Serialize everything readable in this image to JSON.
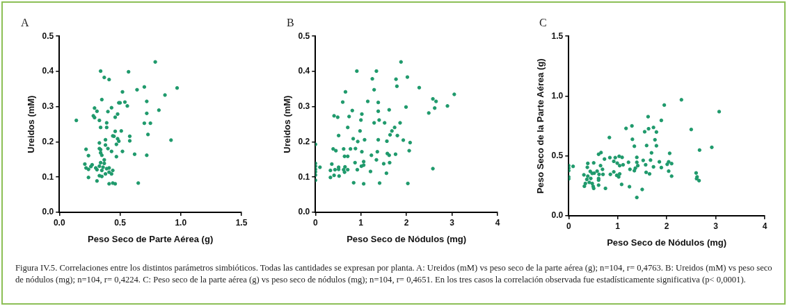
{
  "chart_data": [
    {
      "type": "scatter",
      "title": "A",
      "xlabel": "Peso Seco de Parte Aérea (g)",
      "ylabel": "Ureidos (mM)",
      "marker": "circle",
      "grid": false,
      "legend": false,
      "xlim": [
        0,
        1.5
      ],
      "xticks": [
        {
          "value": 0,
          "label": "0.0"
        },
        {
          "value": 0.5,
          "label": "0.5"
        },
        {
          "value": 1,
          "label": "1.0"
        },
        {
          "value": 1.5,
          "label": "1.5"
        }
      ],
      "ylim": [
        0,
        0.5
      ],
      "yticks": [
        {
          "value": 0,
          "label": "0.0"
        },
        {
          "value": 0.1,
          "label": "0.1"
        },
        {
          "value": 0.2,
          "label": "0.2"
        },
        {
          "value": 0.3,
          "label": "0.3"
        },
        {
          "value": 0.4,
          "label": "0.4"
        },
        {
          "value": 0.5,
          "label": "0.5"
        }
      ],
      "annotations": [
        "Figura IV.5. Correlaciones entre los distintos parámetros simbióticos. Todas las cantidades se expresan por planta. A: Ureidos (mM) vs peso seco de la parte aérea (g); n=104, r= 0,4763. B: Ureidos (mM) vs peso seco de nódulos (mg); n=104, r= 0,4224. C: Peso seco de la parte aérea (g) vs peso seco de nódulos (mg); n=104, r= 0,4651. En los tres casos la correlación observada fue estadísticamente significativa (p< 0,0001)."
      ],
      "series": [
        {
          "color": "#1f9a6c",
          "x": [
            0.14,
            0.34,
            0.37,
            0.41,
            0.57,
            0.79,
            0.7,
            0.64,
            0.52,
            0.97,
            0.87,
            0.72,
            0.54,
            0.56,
            0.49,
            0.5,
            0.35,
            0.29,
            0.31,
            0.43,
            0.4,
            0.48,
            0.28,
            0.29,
            0.33,
            0.46,
            0.39,
            0.34,
            0.39,
            0.72,
            0.82,
            0.7,
            0.75,
            0.51,
            0.46,
            0.58,
            0.58,
            0.73,
            0.44,
            0.45,
            0.48,
            0.49,
            0.38,
            0.33,
            0.38,
            0.4,
            0.47,
            0.43,
            0.52,
            0.92,
            0.22,
            0.33,
            0.34,
            0.34,
            0.35,
            0.24,
            0.62,
            0.72,
            0.47,
            0.37,
            0.34,
            0.37,
            0.21,
            0.27,
            0.26,
            0.22,
            0.24,
            0.3,
            0.33,
            0.36,
            0.39,
            0.41,
            0.31,
            0.35,
            0.44,
            0.41,
            0.38,
            0.33,
            0.35,
            0.43,
            0.24,
            0.31,
            0.41,
            0.44,
            0.46,
            0.65
          ],
          "values": [
            0.261,
            0.401,
            0.383,
            0.377,
            0.399,
            0.427,
            0.356,
            0.348,
            0.342,
            0.353,
            0.333,
            0.315,
            0.313,
            0.302,
            0.311,
            0.311,
            0.32,
            0.296,
            0.287,
            0.297,
            0.286,
            0.279,
            0.274,
            0.269,
            0.261,
            0.27,
            0.254,
            0.241,
            0.241,
            0.281,
            0.29,
            0.253,
            0.253,
            0.231,
            0.23,
            0.216,
            0.203,
            0.221,
            0.217,
            0.216,
            0.209,
            0.202,
            0.206,
            0.197,
            0.191,
            0.181,
            0.193,
            0.173,
            0.173,
            0.205,
            0.179,
            0.181,
            0.178,
            0.169,
            0.162,
            0.161,
            0.165,
            0.162,
            0.158,
            0.149,
            0.141,
            0.139,
            0.137,
            0.135,
            0.13,
            0.126,
            0.122,
            0.126,
            0.131,
            0.128,
            0.124,
            0.126,
            0.121,
            0.119,
            0.119,
            0.114,
            0.109,
            0.104,
            0.102,
            0.109,
            0.099,
            0.089,
            0.081,
            0.083,
            0.081,
            0.083
          ]
        }
      ]
    },
    {
      "type": "scatter",
      "title": "B",
      "xlabel": "Peso Seco de Nódulos (mg)",
      "ylabel": "Ureidos (mM)",
      "marker": "circle",
      "grid": false,
      "legend": false,
      "xlim": [
        0,
        4
      ],
      "xticks": [
        0,
        1,
        2,
        3,
        4
      ],
      "ylim": [
        0,
        0.5
      ],
      "yticks": [
        {
          "value": 0,
          "label": "0.0"
        },
        {
          "value": 0.1,
          "label": "0.1"
        },
        {
          "value": 0.2,
          "label": "0.2"
        },
        {
          "value": 0.3,
          "label": "0.3"
        },
        {
          "value": 0.4,
          "label": "0.4"
        },
        {
          "value": 0.5,
          "label": "0.5"
        }
      ],
      "series": [
        {
          "color": "#1f9a6c",
          "x": [
            0,
            0,
            0,
            0,
            0,
            0,
            0,
            0.1,
            0.91,
            1.34,
            1.88,
            1.25,
            1.77,
            2.02,
            1.79,
            2.28,
            1.29,
            0.66,
            3.05,
            2.58,
            2.65,
            1.15,
            1.38,
            0.6,
            2.9,
            1.99,
            2.62,
            1.62,
            0.81,
            1.38,
            2.49,
            1.02,
            0.41,
            0.49,
            0.74,
            1,
            1.4,
            1.29,
            1.52,
            1.86,
            0.71,
            1.74,
            0.98,
            1.68,
            1.64,
            1.8,
            0.51,
            0.83,
            1.08,
            1.38,
            1.93,
            0.93,
            1.57,
            2.08,
            0.39,
            0.45,
            0.62,
            0.77,
            0.88,
            1.02,
            1.36,
            2.06,
            1.76,
            1.58,
            1.62,
            1.23,
            0.64,
            0.71,
            1.34,
            0.36,
            0.87,
            1.06,
            1.5,
            1.63,
            1.01,
            1.06,
            0.65,
            0.51,
            0.43,
            0.51,
            0.62,
            0.71,
            0.92,
            0.33,
            0.64,
            1.21,
            1.56,
            2.58,
            0.41,
            0.52,
            0.33,
            0.84,
            1.06,
            1.41,
            2.03
          ],
          "values": [
            0.193,
            0.139,
            0.131,
            0.122,
            0.115,
            0.106,
            0.091,
            0.128,
            0.401,
            0.401,
            0.427,
            0.379,
            0.378,
            0.384,
            0.358,
            0.354,
            0.348,
            0.342,
            0.335,
            0.322,
            0.315,
            0.315,
            0.312,
            0.313,
            0.302,
            0.299,
            0.296,
            0.291,
            0.289,
            0.287,
            0.282,
            0.279,
            0.274,
            0.27,
            0.272,
            0.262,
            0.262,
            0.254,
            0.254,
            0.254,
            0.241,
            0.241,
            0.231,
            0.231,
            0.22,
            0.218,
            0.218,
            0.209,
            0.206,
            0.206,
            0.205,
            0.201,
            0.202,
            0.198,
            0.18,
            0.175,
            0.18,
            0.18,
            0.181,
            0.172,
            0.172,
            0.175,
            0.165,
            0.167,
            0.162,
            0.162,
            0.159,
            0.159,
            0.149,
            0.137,
            0.141,
            0.144,
            0.138,
            0.141,
            0.131,
            0.134,
            0.129,
            0.128,
            0.121,
            0.122,
            0.121,
            0.121,
            0.121,
            0.119,
            0.114,
            0.116,
            0.111,
            0.124,
            0.105,
            0.103,
            0.099,
            0.084,
            0.081,
            0.083,
            0.082
          ]
        }
      ]
    },
    {
      "type": "scatter",
      "title": "C",
      "xlabel": "Peso Seco de Nódulos (mg)",
      "ylabel": "Peso Seco de la Parte Aérea (g)",
      "marker": "circle",
      "grid": false,
      "legend": false,
      "xlim": [
        0,
        4
      ],
      "xticks": [
        0,
        1,
        2,
        3,
        4
      ],
      "ylim": [
        0,
        1.5
      ],
      "yticks": [
        {
          "value": 0,
          "label": "0.0"
        },
        {
          "value": 0.5,
          "label": "0.5"
        },
        {
          "value": 1,
          "label": "1.0"
        },
        {
          "value": 1.5,
          "label": "1.5"
        }
      ],
      "series": [
        {
          "color": "#1f9a6c",
          "x": [
            0,
            0,
            0,
            0,
            0,
            0.09,
            2.3,
            1.95,
            3.07,
            1.89,
            1.62,
            1.29,
            1.17,
            2.5,
            1.55,
            1.73,
            1.63,
            1.79,
            0.83,
            1.3,
            1.76,
            1.34,
            1.59,
            1.79,
            2.92,
            2.67,
            1.69,
            2.06,
            0.66,
            0.61,
            0.73,
            0.84,
            0.95,
            1.03,
            1.09,
            1.39,
            1.52,
            1.67,
            1.85,
            2.04,
            2.1,
            0.92,
            0.99,
            1.11,
            1.22,
            1.39,
            0.39,
            0.51,
            0.65,
            1.04,
            2.01,
            0.38,
            1.25,
            1.41,
            1.57,
            1.73,
            1.89,
            0.69,
            0.58,
            0.44,
            0.52,
            0.48,
            0.31,
            0.39,
            0.62,
            0.7,
            0.85,
            0.98,
            1.04,
            0.92,
            1.34,
            1.36,
            1.58,
            1.65,
            2.04,
            2.1,
            2.6,
            2.62,
            2.66,
            2.61,
            0.37,
            0.45,
            0.61,
            0.61,
            1.02,
            0.34,
            0.42,
            0.48,
            0.32,
            0.5,
            0.61,
            0.51,
            1.08,
            1.24,
            0.75,
            1.5,
            1.39
          ],
          "values": [
            0.419,
            0.398,
            0.377,
            0.325,
            0.308,
            0.413,
            0.969,
            0.925,
            0.87,
            0.797,
            0.828,
            0.751,
            0.73,
            0.721,
            0.702,
            0.738,
            0.727,
            0.7,
            0.654,
            0.639,
            0.635,
            0.581,
            0.587,
            0.585,
            0.572,
            0.549,
            0.526,
            0.522,
            0.528,
            0.514,
            0.474,
            0.486,
            0.486,
            0.497,
            0.488,
            0.488,
            0.463,
            0.465,
            0.451,
            0.451,
            0.436,
            0.455,
            0.44,
            0.426,
            0.447,
            0.447,
            0.438,
            0.442,
            0.419,
            0.419,
            0.43,
            0.405,
            0.388,
            0.419,
            0.426,
            0.409,
            0.403,
            0.388,
            0.373,
            0.371,
            0.356,
            0.354,
            0.342,
            0.331,
            0.346,
            0.346,
            0.346,
            0.338,
            0.35,
            0.367,
            0.377,
            0.398,
            0.363,
            0.35,
            0.373,
            0.331,
            0.358,
            0.325,
            0.294,
            0.31,
            0.304,
            0.312,
            0.312,
            0.298,
            0.325,
            0.27,
            0.279,
            0.27,
            0.247,
            0.245,
            0.256,
            0.229,
            0.262,
            0.243,
            0.229,
            0.22,
            0.153
          ]
        }
      ]
    }
  ]
}
